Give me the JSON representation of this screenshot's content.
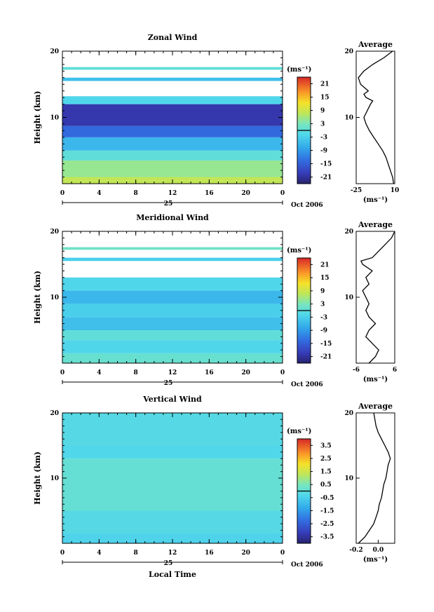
{
  "chart_data": [
    {
      "type": "heatmap",
      "title": "Zonal Wind",
      "ylabel": "Height (km)",
      "ylim": [
        0,
        20
      ],
      "y_ticks": [
        "10",
        "20"
      ],
      "x_ticks": [
        "0",
        "4",
        "8",
        "12",
        "16",
        "20",
        "0"
      ],
      "day_label": "25",
      "date_label": "Oct 2006",
      "colorbar": {
        "unit_label": "(ms⁻¹)",
        "ticks": [
          "21",
          "15",
          "9",
          "3",
          "-3",
          "-9",
          "-15",
          "-21"
        ],
        "range": [
          -24,
          24
        ]
      },
      "layers": [
        {
          "bottom": 0,
          "top": 1.0,
          "value": 8
        },
        {
          "bottom": 1.0,
          "top": 3.5,
          "value": 5
        },
        {
          "bottom": 3.5,
          "top": 5.0,
          "value": 0
        },
        {
          "bottom": 5.0,
          "top": 7.0,
          "value": -6
        },
        {
          "bottom": 7.0,
          "top": 8.7,
          "value": -14
        },
        {
          "bottom": 8.7,
          "top": 12.0,
          "value": -20
        },
        {
          "bottom": 12.0,
          "top": 13.2,
          "value": -2
        },
        {
          "bottom": 15.5,
          "top": 16.0,
          "value": -5
        },
        {
          "bottom": 17.2,
          "top": 17.6,
          "value": 0
        }
      ],
      "average": {
        "title": "Average",
        "xlabel": "(ms⁻¹)",
        "x_ticks": [
          "-25",
          "10"
        ],
        "xlim": [
          -25,
          10
        ],
        "height": [
          0,
          1,
          2,
          3,
          4,
          5,
          6,
          7,
          8,
          9,
          10,
          11,
          12,
          12.5,
          13,
          13.5,
          14,
          15,
          16,
          17,
          18,
          19,
          20
        ],
        "value": [
          9,
          8,
          6,
          4,
          2,
          -1,
          -5,
          -9,
          -13,
          -16,
          -18,
          -15,
          -12,
          -10,
          -16,
          -18,
          -14,
          -21,
          -23,
          -18,
          -10,
          0,
          8
        ]
      }
    },
    {
      "type": "heatmap",
      "title": "Meridional Wind",
      "ylabel": "Height (km)",
      "ylim": [
        0,
        20
      ],
      "y_ticks": [
        "10",
        "20"
      ],
      "x_ticks": [
        "0",
        "4",
        "8",
        "12",
        "16",
        "20",
        "0"
      ],
      "day_label": "25",
      "date_label": "Oct 2006",
      "colorbar": {
        "unit_label": "(ms⁻¹)",
        "ticks": [
          "21",
          "15",
          "9",
          "3",
          "-3",
          "-9",
          "-15",
          "-21"
        ],
        "range": [
          -24,
          24
        ]
      },
      "layers": [
        {
          "bottom": 0,
          "top": 1.5,
          "value": 1
        },
        {
          "bottom": 1.5,
          "top": 3.5,
          "value": -2
        },
        {
          "bottom": 3.5,
          "top": 5.0,
          "value": 0
        },
        {
          "bottom": 5.0,
          "top": 7.0,
          "value": -5
        },
        {
          "bottom": 7.0,
          "top": 9.0,
          "value": -3
        },
        {
          "bottom": 9.0,
          "top": 11.0,
          "value": -6
        },
        {
          "bottom": 11.0,
          "top": 13.0,
          "value": -2
        },
        {
          "bottom": 15.5,
          "top": 16.0,
          "value": -3
        },
        {
          "bottom": 17.2,
          "top": 17.6,
          "value": 2
        }
      ],
      "average": {
        "title": "Average",
        "xlabel": "(ms⁻¹)",
        "x_ticks": [
          "-6",
          "6"
        ],
        "xlim": [
          -6,
          6
        ],
        "height": [
          0,
          1,
          2,
          3,
          4,
          5,
          6,
          7,
          8,
          9,
          10,
          11,
          12,
          13,
          14,
          15,
          15.5,
          16,
          17,
          18,
          19,
          20
        ],
        "value": [
          -2,
          0,
          1,
          -1,
          -3,
          -2,
          0,
          -2,
          -3,
          -2,
          -3,
          -4,
          -2,
          -3,
          -1,
          -4,
          -4.5,
          -1,
          1,
          3,
          5,
          6
        ]
      }
    },
    {
      "type": "heatmap",
      "title": "Vertical Wind",
      "ylabel": "Height (km)",
      "ylim": [
        0,
        20
      ],
      "y_ticks": [
        "10",
        "20"
      ],
      "x_ticks": [
        "0",
        "4",
        "8",
        "12",
        "16",
        "20",
        "0"
      ],
      "day_label": "25",
      "date_label": "Oct 2006",
      "xlabel": "Local Time",
      "colorbar": {
        "unit_label": "(ms⁻¹)",
        "ticks": [
          "3.5",
          "2.5",
          "1.5",
          "0.5",
          "-0.5",
          "-1.5",
          "-2.5",
          "-3.5"
        ],
        "range": [
          -4,
          4
        ]
      },
      "layers": [
        {
          "bottom": 0,
          "top": 1.5,
          "value": -0.4
        },
        {
          "bottom": 1.5,
          "top": 5.0,
          "value": -0.2
        },
        {
          "bottom": 5.0,
          "top": 13.0,
          "value": 0.1
        },
        {
          "bottom": 13.0,
          "top": 15.0,
          "value": -0.3
        },
        {
          "bottom": 15.0,
          "top": 20.0,
          "value": -0.2
        }
      ],
      "average": {
        "title": "Average",
        "xlabel": "(ms⁻¹)",
        "x_ticks": [
          "-0.2",
          "0.0"
        ],
        "xlim": [
          -0.2,
          0.15
        ],
        "height": [
          0,
          1,
          2,
          3,
          4,
          5,
          6,
          7,
          8,
          9,
          10,
          11,
          12,
          13,
          14,
          15,
          16,
          17,
          18,
          19,
          20
        ],
        "value": [
          -0.18,
          -0.12,
          -0.08,
          -0.04,
          -0.02,
          0.0,
          0.01,
          0.03,
          0.04,
          0.05,
          0.07,
          0.08,
          0.09,
          0.11,
          0.09,
          0.06,
          0.03,
          0.0,
          -0.02,
          -0.03,
          -0.04
        ]
      }
    }
  ]
}
